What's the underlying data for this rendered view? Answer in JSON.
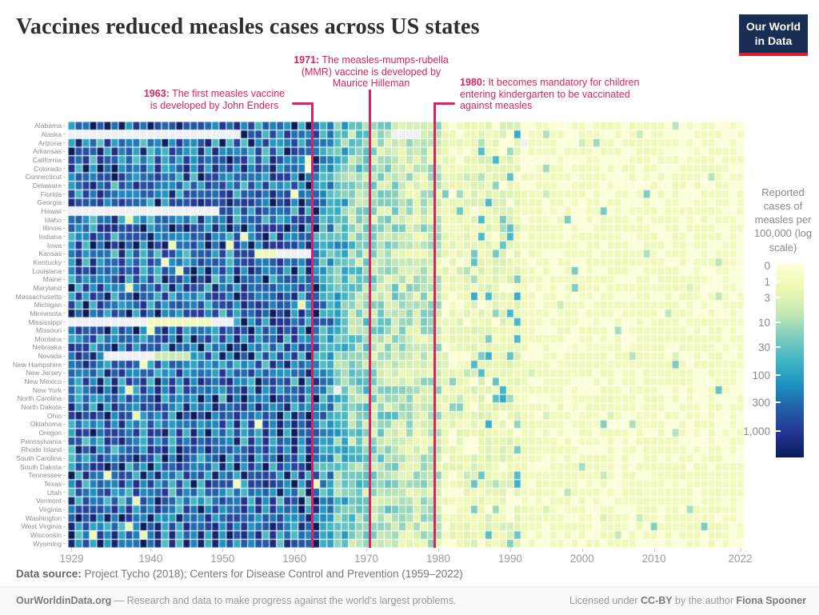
{
  "title": "Vaccines reduced measles cases across US states",
  "logo": {
    "line1": "Our World",
    "line2": "in Data"
  },
  "colors": {
    "annotation": "#d62468",
    "logo_bg": "#1a2e54",
    "logo_red": "#d8232a",
    "title_text": "#2f2f2f",
    "axis_text": "#9b9b9b"
  },
  "annotations": [
    {
      "year": 1963,
      "prefix": "1963:",
      "first": " The first measles vaccine",
      "rest": [
        "is developed by John Enders"
      ]
    },
    {
      "year": 1971,
      "prefix": "1971:",
      "first": " The measles-mumps-rubella",
      "rest": [
        "(MMR) vaccine is developed by",
        "Maurice Hilleman"
      ]
    },
    {
      "year": 1980,
      "prefix": "1980:",
      "first": " It becomes mandatory for children",
      "rest": [
        "entering kindergarten to be vaccinated",
        "against measles"
      ]
    }
  ],
  "chart_data": {
    "type": "heatmap",
    "title": "Vaccines reduced measles cases across US states",
    "x": {
      "start": 1929,
      "end": 2022,
      "ticks": [
        1929,
        1940,
        1950,
        1960,
        1970,
        1980,
        1990,
        2000,
        2010,
        2022
      ]
    },
    "states": [
      "Alabama",
      "Alaska",
      "Arizona",
      "Arkansas",
      "California",
      "Colorado",
      "Connecticut",
      "Delaware",
      "Florida",
      "Georgia",
      "Hawaii",
      "Idaho",
      "Illinois",
      "Indiana",
      "Iowa",
      "Kansas",
      "Kentucky",
      "Louisiana",
      "Maine",
      "Maryland",
      "Massachusetts",
      "Michigan",
      "Minnesota",
      "Mississippi",
      "Missouri",
      "Montana",
      "Nebraska",
      "Nevada",
      "New Hampshire",
      "New Jersey",
      "New Mexico",
      "New York",
      "North Carolina",
      "North Dakota",
      "Ohio",
      "Oklahoma",
      "Oregon",
      "Pennsylvania",
      "Rhode Island",
      "South Carolina",
      "South Dakota",
      "Tennessee",
      "Texas",
      "Utah",
      "Vermont",
      "Virginia",
      "Washington",
      "West Virginia",
      "Wisconsin",
      "Wyoming"
    ],
    "event_lines": [
      1963,
      1971,
      1980
    ],
    "legend": {
      "title": "Reported cases of measles per 100,000 (log scale)",
      "ticks": [
        {
          "label": "0",
          "f": 0.01
        },
        {
          "label": "1",
          "f": 0.09
        },
        {
          "label": "3",
          "f": 0.175
        },
        {
          "label": "10",
          "f": 0.3
        },
        {
          "label": "30",
          "f": 0.43
        },
        {
          "label": "100",
          "f": 0.575
        },
        {
          "label": "300",
          "f": 0.713
        },
        {
          "label": "1,000",
          "f": 0.865
        }
      ]
    },
    "colormap": [
      "#ffffd9",
      "#edf8b1",
      "#c7e9b4",
      "#7fcdbb",
      "#41b6c4",
      "#1d91c0",
      "#225ea8",
      "#253494",
      "#081d58"
    ],
    "value_scale": "log10 of reported cases per 100,000; 0 maps to pale yellow, 1,000+ maps to dark navy",
    "eras": [
      {
        "from": 1929,
        "to": 1963,
        "base": 2.5,
        "amp": 0.55,
        "cycle": 0.3,
        "lowProb": 0.015
      },
      {
        "from": 1964,
        "to": 1965,
        "base": 1.95,
        "amp": 0.6
      },
      {
        "from": 1966,
        "to": 1967,
        "base": 1.55,
        "amp": 0.65
      },
      {
        "from": 1968,
        "to": 1970,
        "base": 1.2,
        "amp": 0.65
      },
      {
        "from": 1971,
        "to": 1974,
        "base": 0.95,
        "amp": 0.6
      },
      {
        "from": 1975,
        "to": 1980,
        "base": 0.7,
        "amp": 0.55
      },
      {
        "from": 1981,
        "to": 1984,
        "base": 0.2,
        "amp": 0.28,
        "spikeProb": 0.07,
        "spikeBase": 1.0,
        "spikeAmp": 0.4
      },
      {
        "from": 1985,
        "to": 1991,
        "base": 0.28,
        "amp": 0.32,
        "spikeProb": 0.2,
        "spikeBase": 1.45,
        "spikeAmp": 0.5
      },
      {
        "from": 1992,
        "to": 2019,
        "base": 0.07,
        "amp": 0.12,
        "spikeProb": 0.03,
        "spikeBase": 0.9,
        "spikeAmp": 0.45
      },
      {
        "from": 2020,
        "to": 2022,
        "base": 0.03,
        "amp": 0.06
      }
    ],
    "no_data": [
      {
        "state": "Alaska",
        "from": 1929,
        "to": 1952
      },
      {
        "state": "Alaska",
        "from": 1974,
        "to": 1977
      },
      {
        "state": "Hawaii",
        "from": 1929,
        "to": 1949
      },
      {
        "state": "Mississippi",
        "from": 1929,
        "to": 1939
      },
      {
        "state": "Mississippi",
        "from": 1949,
        "to": 1951
      },
      {
        "state": "Kansas",
        "from": 1958,
        "to": 1962
      },
      {
        "state": "Nevada",
        "from": 1934,
        "to": 1940
      },
      {
        "state": "New York",
        "from": 1966,
        "to": 1966
      },
      {
        "state": "Arizona",
        "from": 1992,
        "to": 1992
      }
    ],
    "overrides": [
      {
        "state": "Mississippi",
        "from": 1940,
        "to": 1948,
        "level": 0.1
      },
      {
        "state": "Kansas",
        "from": 1955,
        "to": 1957,
        "level": 0.15
      },
      {
        "state": "Nevada",
        "from": 1941,
        "to": 1945,
        "level": 0.75
      },
      {
        "state": "New York",
        "from": 2019,
        "to": 2019,
        "level": 1.5
      }
    ],
    "seed": 7
  },
  "footer": {
    "source_label": "Data source:",
    "source_text": " Project Tycho (2018); Centers for Disease Control and Prevention (1959–2022)",
    "site": "OurWorldinData.org",
    "tagline": " — Research and data to make progress against the world’s largest problems.",
    "license_pre": "Licensed under ",
    "license_cc": "CC-BY",
    "license_mid": " by the author ",
    "license_author": "Fiona Spooner"
  }
}
